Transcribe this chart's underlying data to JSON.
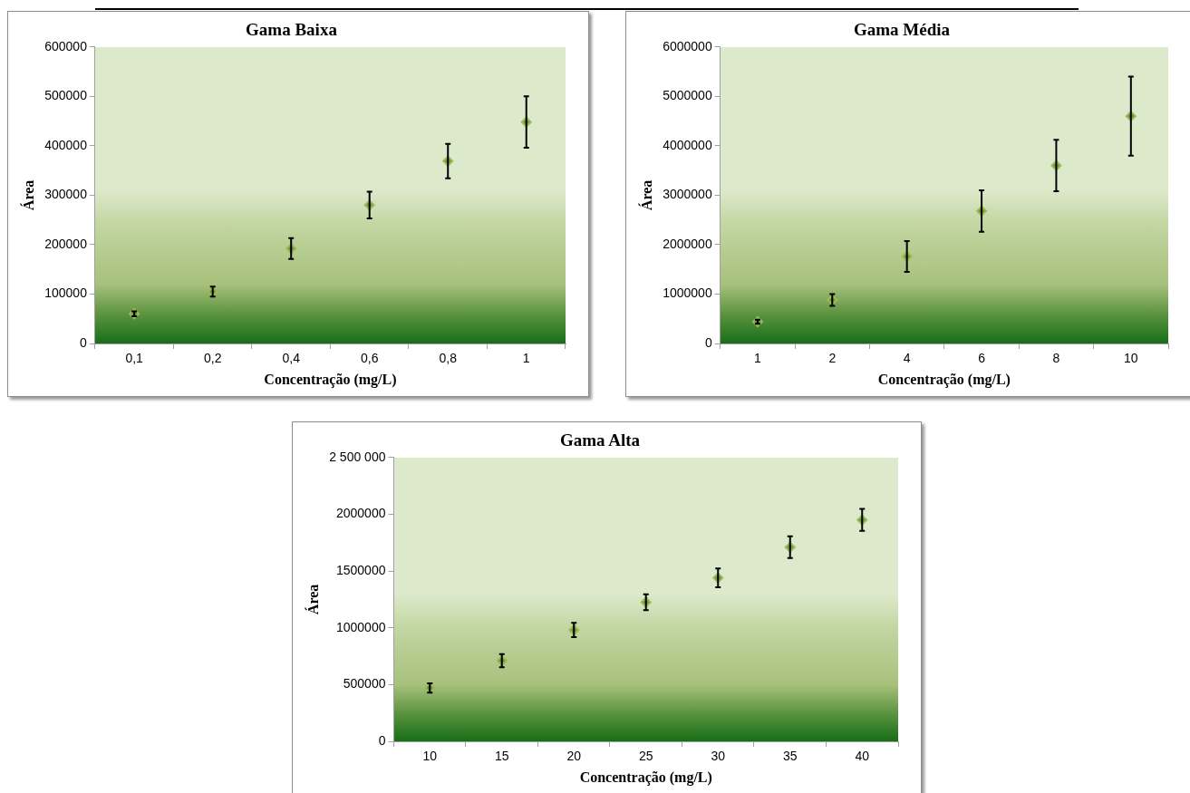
{
  "chart_data": [
    {
      "type": "scatter",
      "title": "Gama Baixa",
      "xlabel": "Concentração (mg/L)",
      "ylabel": "Área",
      "categories": [
        "0,1",
        "0,2",
        "0,4",
        "0,6",
        "0,8",
        "1"
      ],
      "values": [
        60000,
        105000,
        192000,
        280000,
        369000,
        448000
      ],
      "errors": [
        5000,
        10000,
        21000,
        27000,
        35000,
        52000
      ],
      "color": "#76923c",
      "ylim": [
        0,
        600000
      ],
      "yticks": [
        0,
        100000,
        200000,
        300000,
        400000,
        500000,
        600000
      ],
      "marker": "diamond",
      "grid": false,
      "legend": false
    },
    {
      "type": "scatter",
      "title": "Gama Média",
      "xlabel": "Concentração (mg/L)",
      "ylabel": "Área",
      "categories": [
        "1",
        "2",
        "4",
        "6",
        "8",
        "10"
      ],
      "values": [
        440000,
        880000,
        1760000,
        2680000,
        3600000,
        4600000
      ],
      "errors": [
        40000,
        120000,
        310000,
        420000,
        520000,
        800000
      ],
      "color": "#76923c",
      "ylim": [
        0,
        6000000
      ],
      "yticks": [
        0,
        1000000,
        2000000,
        3000000,
        4000000,
        5000000,
        6000000
      ],
      "marker": "diamond",
      "grid": false,
      "legend": false
    },
    {
      "type": "scatter",
      "title": "Gama Alta",
      "xlabel": "Concentração (mg/L)",
      "ylabel": "Área",
      "categories": [
        "10",
        "15",
        "20",
        "25",
        "30",
        "35",
        "40"
      ],
      "values": [
        470000,
        710000,
        980000,
        1225000,
        1440000,
        1710000,
        1950000
      ],
      "errors": [
        40000,
        58000,
        63000,
        70000,
        83000,
        96000,
        97000
      ],
      "color": "#76923c",
      "ylim": [
        0,
        2500000
      ],
      "yticks": [
        0,
        500000,
        1000000,
        1500000,
        2000000,
        {
          "value": 2500000,
          "label": "2 500 000"
        }
      ],
      "marker": "diamond",
      "grid": false,
      "legend": false
    }
  ]
}
